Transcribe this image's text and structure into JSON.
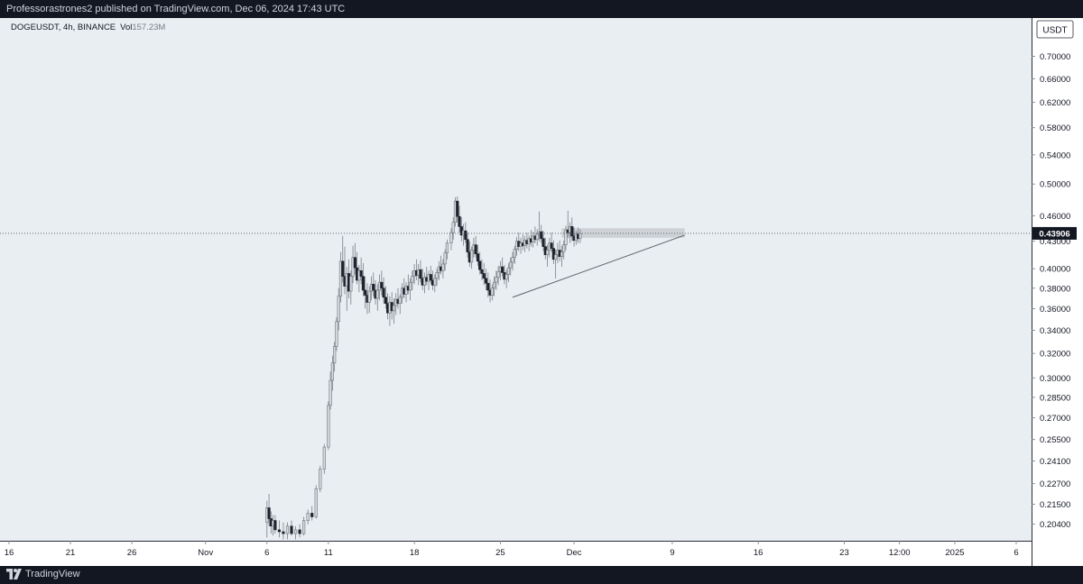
{
  "header": {
    "published_text": "Professorastrones2 published on TradingView.com, Dec 06, 2024 17:43 UTC"
  },
  "footer": {
    "brand": "TradingView"
  },
  "chart_data": {
    "type": "candlestick",
    "symbol_info": "DOGEUSDT, 4h, BINANCE",
    "volume_label": "Vol",
    "volume_value": "157.23M",
    "currency": "USDT",
    "last_price": "0.43906",
    "y_scale": "log",
    "ylim": [
      0.2,
      0.735
    ],
    "y_ticks": [
      "0.70000",
      "0.66000",
      "0.62000",
      "0.58000",
      "0.54000",
      "0.50000",
      "0.46000",
      "0.43000",
      "0.40000",
      "0.38000",
      "0.36000",
      "0.34000",
      "0.32000",
      "0.30000",
      "0.28500",
      "0.27000",
      "0.25500",
      "0.24100",
      "0.22700",
      "0.21500",
      "0.20400"
    ],
    "x_ticks": [
      "16",
      "21",
      "26",
      "Nov",
      "6",
      "11",
      "18",
      "25",
      "Dec",
      "9",
      "16",
      "23",
      "12:00",
      "2025",
      "6"
    ],
    "x_tick_dates": [
      "2024-10-16",
      "2024-10-21",
      "2024-10-26",
      "2024-11-01",
      "2024-11-06",
      "2024-11-11",
      "2024-11-18",
      "2024-11-25",
      "2024-12-01",
      "2024-12-09",
      "2024-12-16",
      "2024-12-23",
      "2024-12-27 12:00",
      "2025-01-01",
      "2025-01-06"
    ],
    "resistance_zone": {
      "from": "2024-11-30",
      "to": "2024-12-10",
      "low": 0.434,
      "high": 0.445
    },
    "trendline": {
      "from_date": "2024-11-26",
      "from_price": 0.371,
      "to_date": "2024-12-10",
      "to_price": 0.437
    },
    "price_line": 0.43906,
    "candles": [
      [
        "2024-11-06 00:00",
        0.205,
        0.217,
        0.197,
        0.213
      ],
      [
        "2024-11-06 04:00",
        0.213,
        0.221,
        0.203,
        0.207
      ],
      [
        "2024-11-06 08:00",
        0.207,
        0.211,
        0.199,
        0.203
      ],
      [
        "2024-11-06 12:00",
        0.203,
        0.209,
        0.198,
        0.206
      ],
      [
        "2024-11-06 16:00",
        0.206,
        0.209,
        0.199,
        0.201
      ],
      [
        "2024-11-07 00:00",
        0.201,
        0.206,
        0.197,
        0.2
      ],
      [
        "2024-11-07 08:00",
        0.2,
        0.205,
        0.196,
        0.199
      ],
      [
        "2024-11-07 16:00",
        0.199,
        0.205,
        0.196,
        0.203
      ],
      [
        "2024-11-08 00:00",
        0.203,
        0.206,
        0.198,
        0.199
      ],
      [
        "2024-11-08 08:00",
        0.199,
        0.203,
        0.196,
        0.201
      ],
      [
        "2024-11-08 16:00",
        0.201,
        0.204,
        0.197,
        0.199
      ],
      [
        "2024-11-09 00:00",
        0.199,
        0.208,
        0.198,
        0.206
      ],
      [
        "2024-11-09 08:00",
        0.206,
        0.212,
        0.204,
        0.21
      ],
      [
        "2024-11-09 16:00",
        0.21,
        0.214,
        0.206,
        0.208
      ],
      [
        "2024-11-10 00:00",
        0.208,
        0.226,
        0.207,
        0.224
      ],
      [
        "2024-11-10 08:00",
        0.224,
        0.238,
        0.222,
        0.236
      ],
      [
        "2024-11-10 16:00",
        0.236,
        0.252,
        0.233,
        0.25
      ],
      [
        "2024-11-11 00:00",
        0.25,
        0.282,
        0.248,
        0.279
      ],
      [
        "2024-11-11 04:00",
        0.279,
        0.305,
        0.276,
        0.298
      ],
      [
        "2024-11-11 08:00",
        0.298,
        0.318,
        0.29,
        0.312
      ],
      [
        "2024-11-11 12:00",
        0.312,
        0.33,
        0.305,
        0.326
      ],
      [
        "2024-11-11 16:00",
        0.326,
        0.352,
        0.322,
        0.348
      ],
      [
        "2024-11-11 20:00",
        0.348,
        0.38,
        0.34,
        0.372
      ],
      [
        "2024-11-12 00:00",
        0.372,
        0.418,
        0.366,
        0.408
      ],
      [
        "2024-11-12 04:00",
        0.408,
        0.436,
        0.386,
        0.392
      ],
      [
        "2024-11-12 08:00",
        0.392,
        0.424,
        0.374,
        0.382
      ],
      [
        "2024-11-12 12:00",
        0.382,
        0.402,
        0.358,
        0.395
      ],
      [
        "2024-11-12 16:00",
        0.395,
        0.41,
        0.37,
        0.377
      ],
      [
        "2024-11-12 20:00",
        0.377,
        0.398,
        0.364,
        0.392
      ],
      [
        "2024-11-13 00:00",
        0.392,
        0.425,
        0.385,
        0.412
      ],
      [
        "2024-11-13 04:00",
        0.412,
        0.428,
        0.394,
        0.401
      ],
      [
        "2024-11-13 08:00",
        0.401,
        0.418,
        0.384,
        0.388
      ],
      [
        "2024-11-13 12:00",
        0.388,
        0.404,
        0.376,
        0.398
      ],
      [
        "2024-11-13 16:00",
        0.398,
        0.412,
        0.384,
        0.392
      ],
      [
        "2024-11-13 20:00",
        0.392,
        0.406,
        0.372,
        0.378
      ],
      [
        "2024-11-14 00:00",
        0.378,
        0.392,
        0.36,
        0.373
      ],
      [
        "2024-11-14 04:00",
        0.373,
        0.385,
        0.355,
        0.366
      ],
      [
        "2024-11-14 08:00",
        0.366,
        0.382,
        0.356,
        0.377
      ],
      [
        "2024-11-14 12:00",
        0.377,
        0.392,
        0.368,
        0.384
      ],
      [
        "2024-11-14 16:00",
        0.384,
        0.396,
        0.372,
        0.378
      ],
      [
        "2024-11-14 20:00",
        0.378,
        0.388,
        0.364,
        0.37
      ],
      [
        "2024-11-15 00:00",
        0.37,
        0.384,
        0.358,
        0.378
      ],
      [
        "2024-11-15 04:00",
        0.378,
        0.394,
        0.368,
        0.386
      ],
      [
        "2024-11-15 08:00",
        0.386,
        0.398,
        0.373,
        0.38
      ],
      [
        "2024-11-15 12:00",
        0.38,
        0.391,
        0.365,
        0.371
      ],
      [
        "2024-11-15 16:00",
        0.371,
        0.382,
        0.36,
        0.365
      ],
      [
        "2024-11-15 20:00",
        0.365,
        0.375,
        0.35,
        0.356
      ],
      [
        "2024-11-16 00:00",
        0.356,
        0.372,
        0.344,
        0.366
      ],
      [
        "2024-11-16 04:00",
        0.366,
        0.376,
        0.35,
        0.358
      ],
      [
        "2024-11-16 08:00",
        0.358,
        0.37,
        0.346,
        0.363
      ],
      [
        "2024-11-16 12:00",
        0.363,
        0.375,
        0.354,
        0.369
      ],
      [
        "2024-11-16 16:00",
        0.369,
        0.38,
        0.36,
        0.365
      ],
      [
        "2024-11-16 20:00",
        0.365,
        0.374,
        0.355,
        0.371
      ],
      [
        "2024-11-17 00:00",
        0.371,
        0.385,
        0.365,
        0.38
      ],
      [
        "2024-11-17 04:00",
        0.38,
        0.39,
        0.37,
        0.374
      ],
      [
        "2024-11-17 08:00",
        0.374,
        0.386,
        0.366,
        0.382
      ],
      [
        "2024-11-17 12:00",
        0.382,
        0.394,
        0.374,
        0.378
      ],
      [
        "2024-11-17 16:00",
        0.378,
        0.39,
        0.368,
        0.386
      ],
      [
        "2024-11-17 20:00",
        0.386,
        0.398,
        0.378,
        0.392
      ],
      [
        "2024-11-18 00:00",
        0.392,
        0.405,
        0.384,
        0.398
      ],
      [
        "2024-11-18 04:00",
        0.398,
        0.41,
        0.388,
        0.393
      ],
      [
        "2024-11-18 08:00",
        0.393,
        0.405,
        0.383,
        0.399
      ],
      [
        "2024-11-18 12:00",
        0.399,
        0.409,
        0.386,
        0.39
      ],
      [
        "2024-11-18 16:00",
        0.39,
        0.4,
        0.378,
        0.383
      ],
      [
        "2024-11-18 20:00",
        0.383,
        0.396,
        0.375,
        0.391
      ],
      [
        "2024-11-19 00:00",
        0.391,
        0.402,
        0.383,
        0.387
      ],
      [
        "2024-11-19 04:00",
        0.387,
        0.398,
        0.378,
        0.394
      ],
      [
        "2024-11-19 08:00",
        0.394,
        0.403,
        0.384,
        0.388
      ],
      [
        "2024-11-19 12:00",
        0.388,
        0.398,
        0.378,
        0.383
      ],
      [
        "2024-11-19 16:00",
        0.383,
        0.394,
        0.376,
        0.39
      ],
      [
        "2024-11-19 20:00",
        0.39,
        0.4,
        0.382,
        0.396
      ],
      [
        "2024-11-20 00:00",
        0.396,
        0.408,
        0.388,
        0.402
      ],
      [
        "2024-11-20 04:00",
        0.402,
        0.414,
        0.394,
        0.398
      ],
      [
        "2024-11-20 08:00",
        0.398,
        0.41,
        0.39,
        0.405
      ],
      [
        "2024-11-20 12:00",
        0.405,
        0.421,
        0.398,
        0.417
      ],
      [
        "2024-11-20 16:00",
        0.417,
        0.432,
        0.41,
        0.428
      ],
      [
        "2024-11-21 00:00",
        0.428,
        0.445,
        0.42,
        0.44
      ],
      [
        "2024-11-21 04:00",
        0.44,
        0.458,
        0.432,
        0.452
      ],
      [
        "2024-11-21 08:00",
        0.452,
        0.483,
        0.447,
        0.478
      ],
      [
        "2024-11-21 12:00",
        0.478,
        0.484,
        0.452,
        0.459
      ],
      [
        "2024-11-21 16:00",
        0.459,
        0.472,
        0.44,
        0.447
      ],
      [
        "2024-11-21 20:00",
        0.447,
        0.458,
        0.43,
        0.437
      ],
      [
        "2024-11-22 00:00",
        0.437,
        0.45,
        0.425,
        0.442
      ],
      [
        "2024-11-22 04:00",
        0.442,
        0.452,
        0.428,
        0.432
      ],
      [
        "2024-11-22 08:00",
        0.432,
        0.44,
        0.412,
        0.418
      ],
      [
        "2024-11-22 12:00",
        0.418,
        0.43,
        0.402,
        0.407
      ],
      [
        "2024-11-22 16:00",
        0.407,
        0.424,
        0.4,
        0.42
      ],
      [
        "2024-11-22 20:00",
        0.42,
        0.434,
        0.412,
        0.426
      ],
      [
        "2024-11-23 00:00",
        0.426,
        0.436,
        0.412,
        0.416
      ],
      [
        "2024-11-23 04:00",
        0.416,
        0.426,
        0.403,
        0.408
      ],
      [
        "2024-11-23 08:00",
        0.408,
        0.418,
        0.394,
        0.399
      ],
      [
        "2024-11-23 12:00",
        0.399,
        0.41,
        0.388,
        0.395
      ],
      [
        "2024-11-23 16:00",
        0.395,
        0.406,
        0.383,
        0.39
      ],
      [
        "2024-11-23 20:00",
        0.39,
        0.4,
        0.378,
        0.385
      ],
      [
        "2024-11-24 00:00",
        0.385,
        0.396,
        0.371,
        0.378
      ],
      [
        "2024-11-24 04:00",
        0.378,
        0.389,
        0.366,
        0.373
      ],
      [
        "2024-11-24 08:00",
        0.373,
        0.384,
        0.368,
        0.38
      ],
      [
        "2024-11-24 12:00",
        0.38,
        0.392,
        0.372,
        0.386
      ],
      [
        "2024-11-24 16:00",
        0.386,
        0.398,
        0.378,
        0.391
      ],
      [
        "2024-11-24 20:00",
        0.391,
        0.403,
        0.383,
        0.397
      ],
      [
        "2024-11-25 00:00",
        0.397,
        0.408,
        0.388,
        0.402
      ],
      [
        "2024-11-25 04:00",
        0.402,
        0.412,
        0.392,
        0.396
      ],
      [
        "2024-11-25 08:00",
        0.396,
        0.404,
        0.384,
        0.389
      ],
      [
        "2024-11-25 12:00",
        0.389,
        0.399,
        0.38,
        0.394
      ],
      [
        "2024-11-25 16:00",
        0.394,
        0.406,
        0.386,
        0.401
      ],
      [
        "2024-11-25 20:00",
        0.401,
        0.412,
        0.393,
        0.407
      ],
      [
        "2024-11-26 00:00",
        0.407,
        0.418,
        0.398,
        0.412
      ],
      [
        "2024-11-26 04:00",
        0.412,
        0.425,
        0.405,
        0.421
      ],
      [
        "2024-11-26 08:00",
        0.421,
        0.435,
        0.414,
        0.43
      ],
      [
        "2024-11-26 12:00",
        0.43,
        0.44,
        0.419,
        0.424
      ],
      [
        "2024-11-26 16:00",
        0.424,
        0.434,
        0.416,
        0.428
      ],
      [
        "2024-11-26 20:00",
        0.428,
        0.438,
        0.42,
        0.425
      ],
      [
        "2024-11-27 00:00",
        0.425,
        0.436,
        0.418,
        0.431
      ],
      [
        "2024-11-27 04:00",
        0.431,
        0.44,
        0.422,
        0.427
      ],
      [
        "2024-11-27 08:00",
        0.427,
        0.437,
        0.419,
        0.433
      ],
      [
        "2024-11-27 12:00",
        0.433,
        0.443,
        0.424,
        0.429
      ],
      [
        "2024-11-27 16:00",
        0.429,
        0.441,
        0.423,
        0.436
      ],
      [
        "2024-11-27 20:00",
        0.436,
        0.447,
        0.428,
        0.432
      ],
      [
        "2024-11-28 00:00",
        0.432,
        0.444,
        0.425,
        0.438
      ],
      [
        "2024-11-28 04:00",
        0.438,
        0.465,
        0.43,
        0.441
      ],
      [
        "2024-11-28 08:00",
        0.441,
        0.449,
        0.428,
        0.433
      ],
      [
        "2024-11-28 12:00",
        0.433,
        0.442,
        0.419,
        0.424
      ],
      [
        "2024-11-28 16:00",
        0.424,
        0.434,
        0.41,
        0.415
      ],
      [
        "2024-11-28 20:00",
        0.415,
        0.426,
        0.402,
        0.42
      ],
      [
        "2024-11-29 00:00",
        0.42,
        0.434,
        0.412,
        0.428
      ],
      [
        "2024-11-29 04:00",
        0.428,
        0.44,
        0.418,
        0.422
      ],
      [
        "2024-11-29 08:00",
        0.422,
        0.431,
        0.405,
        0.41
      ],
      [
        "2024-11-29 12:00",
        0.41,
        0.421,
        0.39,
        0.415
      ],
      [
        "2024-11-29 16:00",
        0.415,
        0.428,
        0.406,
        0.42
      ],
      [
        "2024-11-29 20:00",
        0.42,
        0.431,
        0.408,
        0.413
      ],
      [
        "2024-11-30 00:00",
        0.413,
        0.425,
        0.402,
        0.418
      ],
      [
        "2024-11-30 04:00",
        0.418,
        0.431,
        0.41,
        0.426
      ],
      [
        "2024-11-30 08:00",
        0.426,
        0.448,
        0.42,
        0.443
      ],
      [
        "2024-11-30 12:00",
        0.443,
        0.466,
        0.434,
        0.44
      ],
      [
        "2024-11-30 16:00",
        0.44,
        0.452,
        0.428,
        0.447
      ],
      [
        "2024-11-30 20:00",
        0.447,
        0.458,
        0.43,
        0.436
      ],
      [
        "2024-12-01 00:00",
        0.436,
        0.446,
        0.424,
        0.431
      ],
      [
        "2024-12-01 04:00",
        0.431,
        0.442,
        0.426,
        0.438
      ],
      [
        "2024-12-01 08:00",
        0.438,
        0.446,
        0.428,
        0.433
      ],
      [
        "2024-12-01 12:00",
        0.433,
        0.444,
        0.428,
        0.439
      ]
    ]
  }
}
